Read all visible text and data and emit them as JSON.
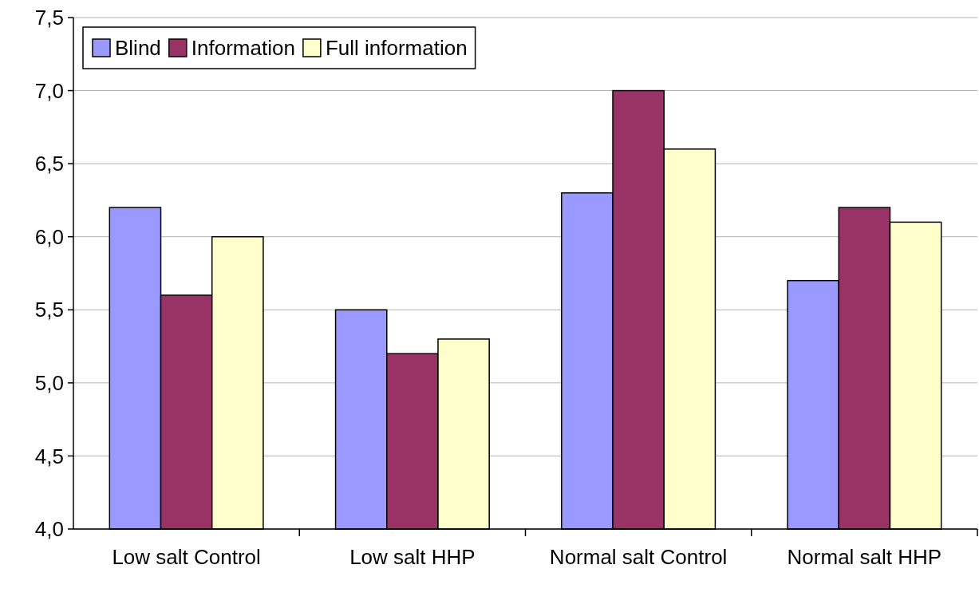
{
  "chart_data": {
    "type": "bar",
    "categories": [
      "Low salt Control",
      "Low salt HHP",
      "Normal salt Control",
      "Normal salt HHP"
    ],
    "series": [
      {
        "name": "Blind",
        "color": "#9999ff",
        "values": [
          6.2,
          5.5,
          6.3,
          5.7
        ]
      },
      {
        "name": "Information",
        "color": "#993366",
        "values": [
          5.6,
          5.2,
          7.0,
          6.2
        ]
      },
      {
        "name": "Full information",
        "color": "#ffffcc",
        "values": [
          6.0,
          5.3,
          6.6,
          6.1
        ]
      }
    ],
    "ylim": [
      4.0,
      7.5
    ],
    "yticks": [
      {
        "value": 4.0,
        "label": "4,0"
      },
      {
        "value": 4.5,
        "label": "4,5"
      },
      {
        "value": 5.0,
        "label": "5,0"
      },
      {
        "value": 5.5,
        "label": "5,5"
      },
      {
        "value": 6.0,
        "label": "6,0"
      },
      {
        "value": 6.5,
        "label": "6,5"
      },
      {
        "value": 7.0,
        "label": "7,0"
      },
      {
        "value": 7.5,
        "label": "7,5"
      }
    ],
    "grid": "y",
    "legend": "top left"
  }
}
